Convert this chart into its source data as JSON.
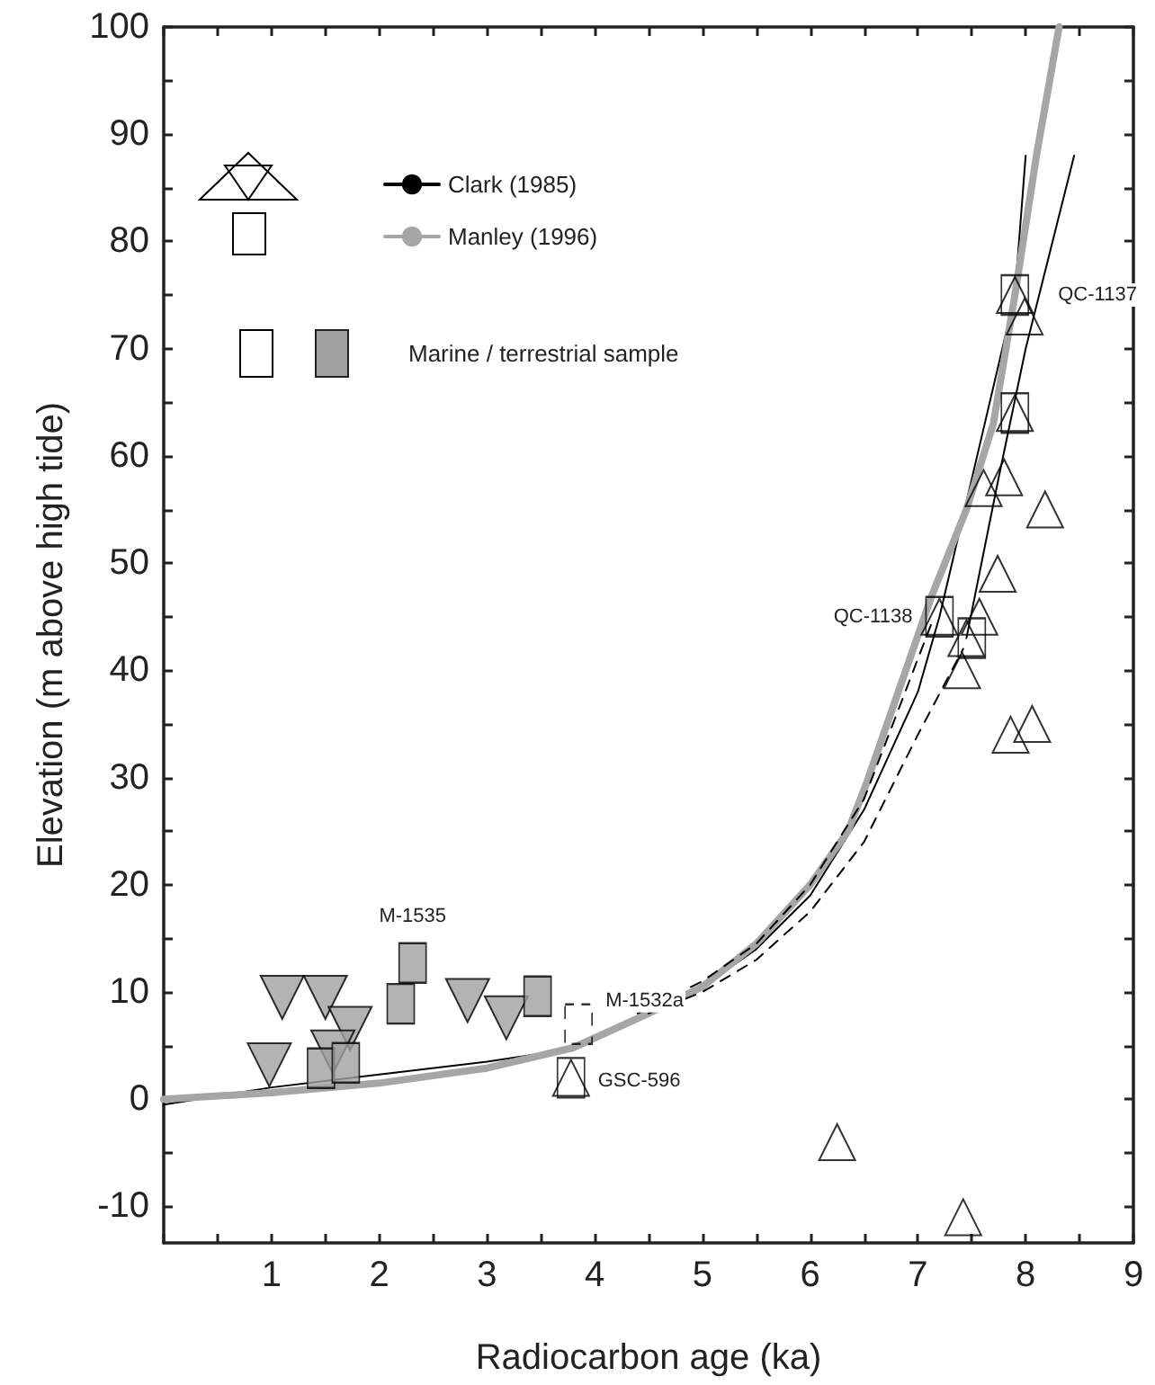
{
  "chart_data": {
    "type": "scatter",
    "xlabel": "Radiocarbon age (ka)",
    "ylabel": "Elevation (m above high tide)",
    "xlim": [
      0,
      9
    ],
    "ylim": [
      -13.4,
      100
    ],
    "xticks": [
      {
        "value": 0,
        "label": null
      },
      {
        "value": 0.5,
        "label": null
      },
      1,
      {
        "value": 1.5,
        "label": null
      },
      2,
      {
        "value": 2.5,
        "label": null
      },
      3,
      {
        "value": 3.5,
        "label": null
      },
      4,
      {
        "value": 4.5,
        "label": null
      },
      5,
      {
        "value": 5.5,
        "label": null
      },
      6,
      {
        "value": 6.5,
        "label": null
      },
      7,
      {
        "value": 7.5,
        "label": null
      },
      8,
      {
        "value": 8.5,
        "label": null
      },
      9
    ],
    "yticks": [
      -10,
      {
        "value": -5,
        "label": null
      },
      0,
      {
        "value": 5,
        "label": null
      },
      10,
      {
        "value": 15,
        "label": null
      },
      20,
      {
        "value": 25,
        "label": null
      },
      30,
      {
        "value": 35,
        "label": null
      },
      40,
      {
        "value": 45,
        "label": null
      },
      50,
      {
        "value": 55,
        "label": null
      },
      60,
      {
        "value": 65,
        "label": null
      },
      70,
      {
        "value": 75,
        "label": null
      },
      80,
      {
        "value": 85,
        "label": null
      },
      90,
      {
        "value": 95,
        "label": null
      },
      100
    ],
    "grid": false,
    "legend": "top left",
    "series": [
      {
        "name": "Clark (1985)",
        "type": "line",
        "color": "#000000",
        "line_style": "solid",
        "marker": "none",
        "x": [
          0,
          1,
          2,
          3,
          3.8,
          4.4,
          5,
          5.5,
          6,
          6.5,
          7,
          7.2,
          7.55,
          7.9,
          8.0
        ],
        "values": [
          -0.5,
          1.1,
          2.3,
          3.5,
          4.7,
          7.5,
          10.5,
          14,
          19,
          27,
          38,
          45,
          60,
          75,
          88
        ]
      },
      {
        "name": "Manley (1996)",
        "type": "line",
        "color": "#a6a6a6",
        "line_style": "solid",
        "marker": "none",
        "x": [
          0,
          1,
          2,
          3,
          3.8,
          4.5,
          5,
          5.5,
          6,
          6.35,
          6.52,
          7.13,
          7.45,
          7.7,
          7.9,
          8.1,
          8.31
        ],
        "values": [
          0,
          0.6,
          1.5,
          2.9,
          4.8,
          8,
          10.5,
          14.5,
          20,
          25,
          29.4,
          47,
          55,
          63,
          75,
          88,
          100
        ]
      },
      {
        "type": "line",
        "color": "#000000",
        "line_style": "solid",
        "marker": "none",
        "x": [
          7.45,
          7.75,
          8.0,
          8.45
        ],
        "values": [
          43,
          58,
          70,
          88
        ]
      },
      {
        "type": "line",
        "color": "#000000",
        "line_style": "dashed",
        "marker": "none",
        "x": [
          4.4,
          5,
          5.5,
          6,
          6.5,
          7.15
        ],
        "values": [
          8,
          11,
          14.5,
          20,
          28,
          45
        ]
      },
      {
        "type": "line",
        "color": "#000000",
        "line_style": "dashed",
        "marker": "none",
        "x": [
          4.5,
          5,
          5.5,
          6,
          6.5,
          7,
          7.42
        ],
        "values": [
          8,
          10,
          13,
          17.5,
          24,
          34,
          42
        ]
      },
      {
        "color": "#000000",
        "marker": "triangle",
        "x": [
          7.9,
          7.99,
          7.9,
          7.8,
          7.61,
          8.18,
          7.74,
          7.2,
          7.57,
          7.45,
          7.41,
          7.86,
          8.06,
          6.25,
          7.42,
          3.78
        ],
        "values": [
          75,
          73,
          64,
          58,
          57,
          55,
          49,
          45,
          45,
          43,
          40,
          34,
          35,
          -4,
          -11,
          2
        ]
      },
      {
        "color": "#000000",
        "marker": "square",
        "x": [
          7.9,
          7.9,
          7.2,
          7.5,
          3.78
        ],
        "values": [
          75,
          64,
          45,
          43,
          2
        ]
      },
      {
        "color": "#000000",
        "marker": "square",
        "line_style": "dashed",
        "x": [
          3.85
        ],
        "values": [
          7
        ]
      },
      {
        "color": "#a0a0a0",
        "marker": "triangle_down",
        "x": [
          1.1,
          1.5,
          1.73,
          0.98,
          1.57,
          2.82,
          3.18
        ],
        "values": [
          9.5,
          9.5,
          6.6,
          3.2,
          4.4,
          9.2,
          7.6
        ]
      },
      {
        "color": "#a0a0a0",
        "marker": "square",
        "x": [
          2.31,
          2.2,
          3.47,
          1.46,
          1.69
        ],
        "values": [
          12.7,
          8.9,
          9.6,
          2.9,
          3.4
        ]
      }
    ],
    "annotations": [
      "Marine / terrestrial sample",
      {
        "text": "QC-1137",
        "x": 7.9,
        "y": 75
      },
      {
        "text": "QC-1138",
        "x": 7.2,
        "y": 45
      },
      {
        "text": "M-1535",
        "x": 2.31,
        "y": 12.7
      },
      {
        "text": "M-1532a",
        "x": 3.85,
        "y": 7
      },
      {
        "text": "GSC-596",
        "x": 3.78,
        "y": 2
      }
    ]
  }
}
